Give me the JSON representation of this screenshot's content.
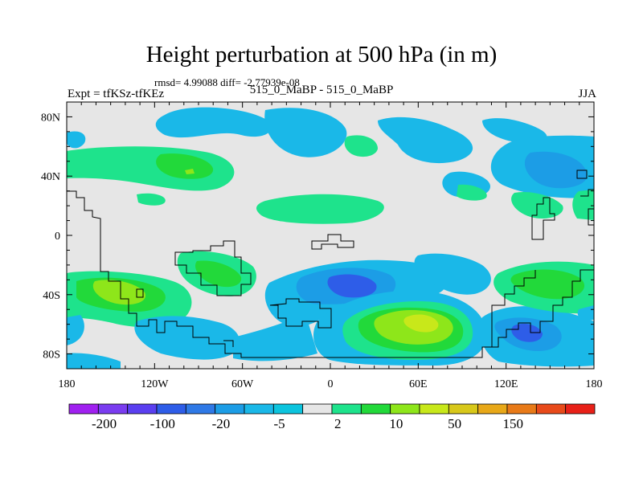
{
  "title": "Height perturbation at 500 hPa (in m)",
  "stats": "rmsd= 4.99088 diff= -2.77939e-08",
  "left_label": "Expt = tfKSz-tfKEz",
  "center_label": "515_0_MaBP - 515_0_MaBP",
  "right_label": "JJA",
  "chart_data": {
    "type": "heatmap",
    "title": "Height perturbation at 500 hPa (in m)",
    "x_ticks": [
      "180",
      "120W",
      "60W",
      "0",
      "60E",
      "120E",
      "180"
    ],
    "y_ticks": [
      "80N",
      "40N",
      "0",
      "40S",
      "80S"
    ],
    "x_range": [
      -180,
      180
    ],
    "y_range": [
      -90,
      90
    ],
    "colorbar": {
      "levels": [
        "-200",
        "-100",
        "-20",
        "-5",
        "2",
        "10",
        "50",
        "150"
      ],
      "colors": [
        "#a020f0",
        "#7a3cf0",
        "#5a3ff0",
        "#2e5de8",
        "#2f79e6",
        "#1c9de6",
        "#1ab8e8",
        "#0cc4de",
        "#e6e6e6",
        "#1ee38c",
        "#22d93a",
        "#8ee61a",
        "#c8e81a",
        "#d8c81a",
        "#e8a818",
        "#e87a18",
        "#e84a1a",
        "#e82018"
      ]
    }
  }
}
